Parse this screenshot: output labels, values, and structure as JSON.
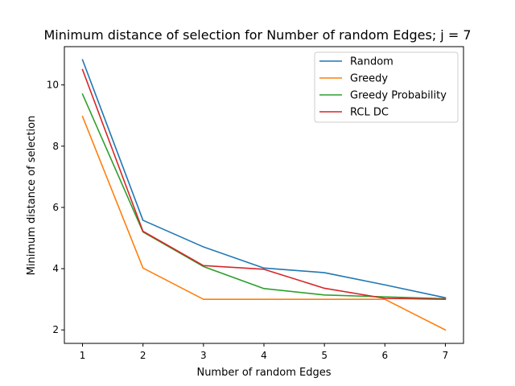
{
  "chart_data": {
    "type": "line",
    "title": "Minimum distance of selection for Number of random Edges; j = 7",
    "xlabel": "Number of random Edges",
    "ylabel": "Minimum distance of selection",
    "x": [
      1,
      2,
      3,
      4,
      5,
      6,
      7
    ],
    "x_ticks": [
      "1",
      "2",
      "3",
      "4",
      "5",
      "6",
      "7"
    ],
    "y_ticks": [
      "2",
      "4",
      "6",
      "8",
      "10"
    ],
    "y_tick_values": [
      2,
      4,
      6,
      8,
      10
    ],
    "xlim": [
      0.7,
      7.3
    ],
    "ylim": [
      1.56,
      11.25
    ],
    "grid": false,
    "legend_position": "top-right",
    "series": [
      {
        "name": "Random",
        "color": "#1f77b4",
        "values": [
          10.82,
          5.58,
          4.71,
          4.02,
          3.87,
          3.47,
          3.05
        ]
      },
      {
        "name": "Greedy",
        "color": "#ff7f0e",
        "values": [
          8.97,
          4.02,
          3.0,
          3.0,
          3.0,
          3.0,
          2.0
        ]
      },
      {
        "name": "Greedy Probability",
        "color": "#2ca02c",
        "values": [
          9.7,
          5.2,
          4.07,
          3.35,
          3.14,
          3.08,
          3.02
        ]
      },
      {
        "name": "RCL DC",
        "color": "#d62728",
        "values": [
          10.5,
          5.22,
          4.1,
          3.98,
          3.36,
          3.03,
          3.0
        ]
      }
    ]
  }
}
